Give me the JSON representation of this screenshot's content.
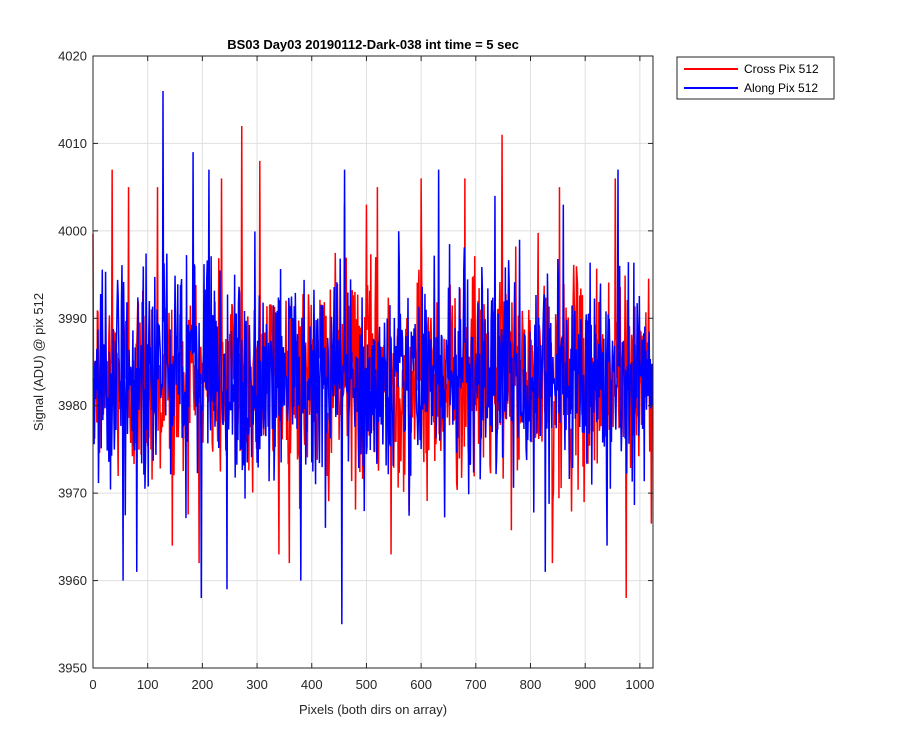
{
  "chart_data": {
    "type": "line",
    "title": "BS03 Day03 20190112-Dark-038 int time = 5 sec",
    "xlabel": "Pixels (both dirs on array)",
    "ylabel": "Signal (ADU) @ pix 512",
    "xlim": [
      0,
      1024
    ],
    "ylim": [
      3950,
      4020
    ],
    "xticks": [
      0,
      100,
      200,
      300,
      400,
      500,
      600,
      700,
      800,
      900,
      1000
    ],
    "yticks": [
      3950,
      3960,
      3970,
      3980,
      3990,
      4000,
      4010,
      4020
    ],
    "grid": true,
    "legend_position": "outside-top-right",
    "series": [
      {
        "name": "Cross Pix 512",
        "color": "#ff0000",
        "mean": 3983,
        "noise_sd": 6,
        "n_points": 1024,
        "clip": [
          3950,
          4020
        ],
        "peaks": [
          {
            "x": 35,
            "y": 4007
          },
          {
            "x": 65,
            "y": 4005
          },
          {
            "x": 118,
            "y": 4005
          },
          {
            "x": 235,
            "y": 4006
          },
          {
            "x": 272,
            "y": 4012
          },
          {
            "x": 305,
            "y": 4008
          },
          {
            "x": 460,
            "y": 4003
          },
          {
            "x": 500,
            "y": 4003
          },
          {
            "x": 520,
            "y": 4005
          },
          {
            "x": 600,
            "y": 4006
          },
          {
            "x": 680,
            "y": 4006
          },
          {
            "x": 748,
            "y": 4011
          },
          {
            "x": 853,
            "y": 4005
          },
          {
            "x": 955,
            "y": 4006
          }
        ],
        "dips": [
          {
            "x": 145,
            "y": 3964
          },
          {
            "x": 340,
            "y": 3963
          },
          {
            "x": 545,
            "y": 3963
          },
          {
            "x": 840,
            "y": 3962
          },
          {
            "x": 975,
            "y": 3958
          }
        ]
      },
      {
        "name": "Along Pix 512",
        "color": "#0000ff",
        "mean": 3983,
        "noise_sd": 6,
        "n_points": 1024,
        "clip": [
          3950,
          4020
        ],
        "peaks": [
          {
            "x": 128,
            "y": 4016
          },
          {
            "x": 183,
            "y": 4009
          },
          {
            "x": 212,
            "y": 4007
          },
          {
            "x": 460,
            "y": 4007
          },
          {
            "x": 632,
            "y": 4007
          },
          {
            "x": 735,
            "y": 4004
          },
          {
            "x": 860,
            "y": 4003
          },
          {
            "x": 960,
            "y": 4007
          }
        ],
        "dips": [
          {
            "x": 55,
            "y": 3960
          },
          {
            "x": 80,
            "y": 3961
          },
          {
            "x": 198,
            "y": 3958
          },
          {
            "x": 245,
            "y": 3959
          },
          {
            "x": 380,
            "y": 3960
          },
          {
            "x": 455,
            "y": 3955
          },
          {
            "x": 827,
            "y": 3961
          },
          {
            "x": 940,
            "y": 3964
          }
        ]
      }
    ]
  }
}
